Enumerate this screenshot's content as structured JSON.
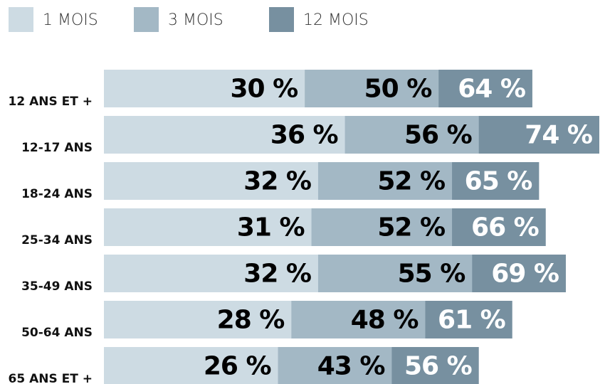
{
  "chart_data": {
    "type": "overlapping_bar",
    "categories": [
      "12 ANS ET +",
      "12-17 ANS",
      "18-24 ANS",
      "25-34 ANS",
      "35-49 ANS",
      "50-64 ANS",
      "65 ANS ET +"
    ],
    "series": [
      {
        "name": "1 MOIS",
        "color": "#cddbe3",
        "label_color": "#000000",
        "values": [
          30,
          36,
          32,
          31,
          32,
          28,
          26
        ],
        "value_labels": [
          "30 %",
          "36 %",
          "32 %",
          "31 %",
          "32 %",
          "28 %",
          "26 %"
        ]
      },
      {
        "name": "3 MOIS",
        "color": "#a3b8c5",
        "label_color": "#000000",
        "values": [
          50,
          56,
          52,
          52,
          55,
          48,
          43
        ],
        "value_labels": [
          "50 %",
          "56 %",
          "52 %",
          "52 %",
          "55 %",
          "48 %",
          "43 %"
        ]
      },
      {
        "name": "12 MOIS",
        "color": "#7790a0",
        "label_color": "#ffffff",
        "values": [
          64,
          74,
          65,
          66,
          69,
          61,
          56
        ],
        "value_labels": [
          "64 %",
          "74 %",
          "65 %",
          "66 %",
          "69 %",
          "61 %",
          "56 %"
        ]
      }
    ]
  }
}
